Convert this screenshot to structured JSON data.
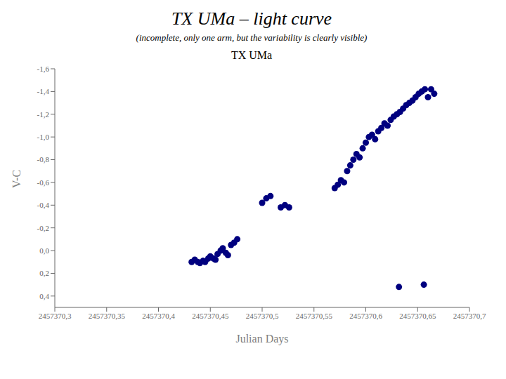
{
  "chart_data": {
    "type": "scatter",
    "title": "TX UMa – light curve",
    "subtitle": "(incomplete, only one arm, but the variability is clearly visible)",
    "inner_title": "TX UMa",
    "x_label": "Julian Days",
    "y_label": "V-C",
    "color": "#00007F",
    "marker": "circle",
    "grid": false,
    "xlim": [
      2457370.3,
      2457370.7
    ],
    "ylim": [
      0.5,
      -1.6
    ],
    "xticks": [
      {
        "value": 2457370.3,
        "label": "2457370,3"
      },
      {
        "value": 2457370.35,
        "label": "2457370,35"
      },
      {
        "value": 2457370.4,
        "label": "2457370,4"
      },
      {
        "value": 2457370.45,
        "label": "2457370,45"
      },
      {
        "value": 2457370.5,
        "label": "2457370,5"
      },
      {
        "value": 2457370.55,
        "label": "2457370,55"
      },
      {
        "value": 2457370.6,
        "label": "2457370,6"
      },
      {
        "value": 2457370.65,
        "label": "2457370,65"
      },
      {
        "value": 2457370.7,
        "label": "2457370,7"
      }
    ],
    "yticks": [
      {
        "value": -1.6,
        "label": "-1,6"
      },
      {
        "value": -1.4,
        "label": "-1,4"
      },
      {
        "value": -1.2,
        "label": "-1,2"
      },
      {
        "value": -1.0,
        "label": "-1,0"
      },
      {
        "value": -0.8,
        "label": "-0,8"
      },
      {
        "value": -0.6,
        "label": "-0,6"
      },
      {
        "value": -0.4,
        "label": "-0,4"
      },
      {
        "value": -0.2,
        "label": "-0,2"
      },
      {
        "value": 0.0,
        "label": "0,0"
      },
      {
        "value": 0.2,
        "label": "0,2"
      },
      {
        "value": 0.4,
        "label": "0,4"
      }
    ],
    "x": [
      2457370.432,
      2457370.435,
      2457370.438,
      2457370.44,
      2457370.443,
      2457370.445,
      2457370.448,
      2457370.45,
      2457370.453,
      2457370.455,
      2457370.457,
      2457370.46,
      2457370.462,
      2457370.465,
      2457370.467,
      2457370.47,
      2457370.473,
      2457370.476,
      2457370.5,
      2457370.504,
      2457370.508,
      2457370.518,
      2457370.522,
      2457370.526,
      2457370.57,
      2457370.573,
      2457370.576,
      2457370.579,
      2457370.582,
      2457370.585,
      2457370.588,
      2457370.591,
      2457370.594,
      2457370.597,
      2457370.6,
      2457370.603,
      2457370.606,
      2457370.609,
      2457370.612,
      2457370.615,
      2457370.618,
      2457370.621,
      2457370.624,
      2457370.627,
      2457370.63,
      2457370.633,
      2457370.636,
      2457370.639,
      2457370.642,
      2457370.645,
      2457370.648,
      2457370.651,
      2457370.654,
      2457370.657,
      2457370.66,
      2457370.663,
      2457370.666,
      2457370.632,
      2457370.656
    ],
    "values": [
      0.1,
      0.08,
      0.1,
      0.11,
      0.09,
      0.1,
      0.07,
      0.05,
      0.07,
      0.08,
      0.03,
      0.0,
      -0.02,
      0.02,
      0.04,
      -0.05,
      -0.07,
      -0.1,
      -0.42,
      -0.46,
      -0.48,
      -0.38,
      -0.4,
      -0.38,
      -0.55,
      -0.58,
      -0.62,
      -0.6,
      -0.7,
      -0.75,
      -0.8,
      -0.85,
      -0.82,
      -0.9,
      -0.95,
      -1.0,
      -1.02,
      -0.98,
      -1.05,
      -1.08,
      -1.12,
      -1.1,
      -1.15,
      -1.18,
      -1.2,
      -1.22,
      -1.25,
      -1.28,
      -1.3,
      -1.32,
      -1.35,
      -1.38,
      -1.4,
      -1.42,
      -1.35,
      -1.42,
      -1.38,
      0.32,
      0.3
    ]
  }
}
